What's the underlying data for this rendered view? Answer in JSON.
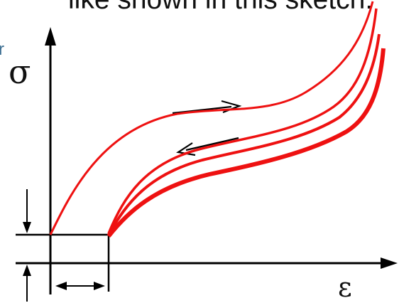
{
  "header": {
    "caption": "like shown in this sketch:",
    "edge_letter": "r"
  },
  "diagram": {
    "y_axis_symbol": "σ",
    "x_axis_symbol": "ε",
    "colors": {
      "curve": "#ee1111",
      "axes": "#000000",
      "edge_letter": "#3d6f92"
    }
  }
}
